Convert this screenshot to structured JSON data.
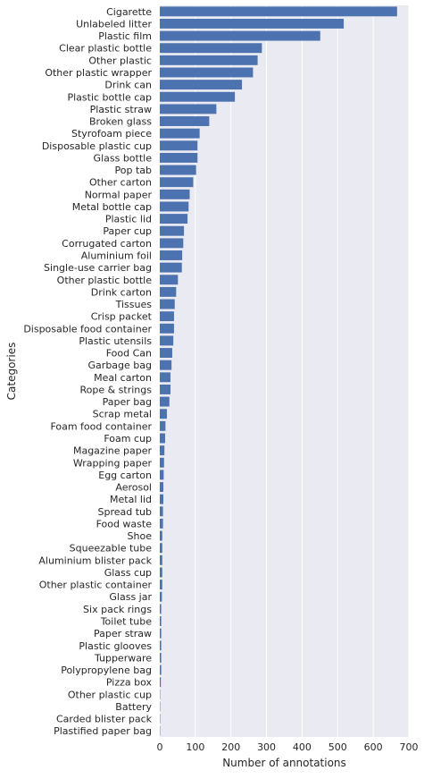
{
  "chart_data": {
    "type": "bar",
    "orientation": "horizontal",
    "xlabel": "Number of annotations",
    "ylabel": "Categories",
    "xlim": [
      0,
      700
    ],
    "xticks": [
      0,
      100,
      200,
      300,
      400,
      500,
      600,
      700
    ],
    "grid": true,
    "colors": {
      "bar": "#4c72b0",
      "plot_background": "#eaeaf2",
      "grid": "#ffffff"
    },
    "categories": [
      "Cigarette",
      "Unlabeled litter",
      "Plastic film",
      "Clear plastic bottle",
      "Other plastic",
      "Other plastic wrapper",
      "Drink can",
      "Plastic bottle cap",
      "Plastic straw",
      "Broken glass",
      "Styrofoam piece",
      "Disposable plastic cup",
      "Glass bottle",
      "Pop tab",
      "Other carton",
      "Normal paper",
      "Metal bottle cap",
      "Plastic lid",
      "Paper cup",
      "Corrugated carton",
      "Aluminium foil",
      "Single-use carrier bag",
      "Other plastic bottle",
      "Drink carton",
      "Tissues",
      "Crisp packet",
      "Disposable food container",
      "Plastic utensils",
      "Food Can",
      "Garbage bag",
      "Meal carton",
      "Rope & strings",
      "Paper bag",
      "Scrap metal",
      "Foam food container",
      "Foam cup",
      "Magazine paper",
      "Wrapping paper",
      "Egg carton",
      "Aerosol",
      "Metal lid",
      "Spread tub",
      "Food waste",
      "Shoe",
      "Squeezable tube",
      "Aluminium blister pack",
      "Glass cup",
      "Other plastic container",
      "Glass jar",
      "Six pack rings",
      "Toilet tube",
      "Paper straw",
      "Plastic glooves",
      "Tupperware",
      "Polypropylene bag",
      "Pizza box",
      "Other plastic cup",
      "Battery",
      "Carded blister pack",
      "Plastified paper bag"
    ],
    "values": [
      667,
      517,
      451,
      287,
      275,
      262,
      231,
      211,
      159,
      139,
      112,
      106,
      106,
      102,
      94,
      84,
      81,
      78,
      68,
      66,
      63,
      62,
      51,
      46,
      42,
      40,
      40,
      38,
      35,
      33,
      30,
      30,
      27,
      20,
      16,
      15,
      13,
      12,
      11,
      10,
      10,
      9,
      9,
      7,
      7,
      7,
      7,
      7,
      6,
      4,
      4,
      4,
      4,
      4,
      4,
      3,
      1,
      1,
      1,
      1
    ]
  }
}
